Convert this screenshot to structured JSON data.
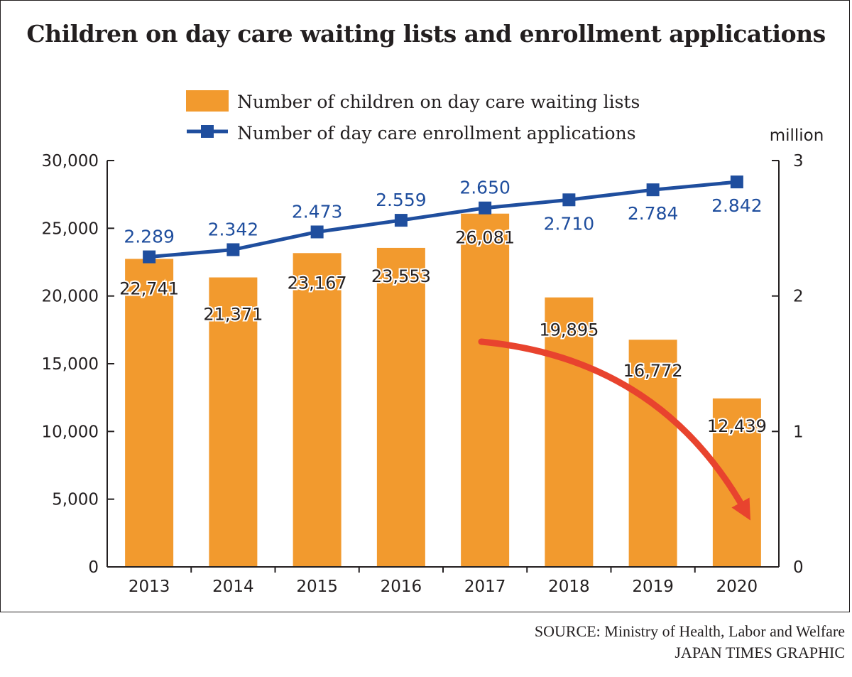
{
  "title": "Children on day care waiting lists and enrollment applications",
  "source": "SOURCE: Ministry of Health, Labor and Welfare",
  "credit": "JAPAN TIMES GRAPHIC",
  "colors": {
    "bar": "#f29a2e",
    "line": "#1f4e9e",
    "arrow": "#e8432e",
    "text": "#231f20"
  },
  "chart_data": {
    "type": "bar",
    "categories": [
      "2013",
      "2014",
      "2015",
      "2016",
      "2017",
      "2018",
      "2019",
      "2020"
    ],
    "series": [
      {
        "name": "Number of children on day care waiting lists",
        "type": "bar",
        "axis": "left",
        "values": [
          22741,
          21371,
          23167,
          23553,
          26081,
          19895,
          16772,
          12439
        ],
        "labels": [
          "22,741",
          "21,371",
          "23,167",
          "23,553",
          "26,081",
          "19,895",
          "16,772",
          "12,439"
        ]
      },
      {
        "name": "Number of day care enrollment applications",
        "type": "line",
        "axis": "right",
        "values": [
          2.289,
          2.342,
          2.473,
          2.559,
          2.65,
          2.71,
          2.784,
          2.842
        ],
        "labels": [
          "2.289",
          "2.342",
          "2.473",
          "2.559",
          "2.650",
          "2.710",
          "2.784",
          "2.842"
        ]
      }
    ],
    "left_axis": {
      "range": [
        0,
        30000
      ],
      "ticks": [
        0,
        5000,
        10000,
        15000,
        20000,
        25000,
        30000
      ],
      "tick_labels": [
        "0",
        "5,000",
        "10,000",
        "15,000",
        "20,000",
        "25,000",
        "30,000"
      ]
    },
    "right_axis": {
      "unit": "million",
      "range": [
        0,
        3
      ],
      "ticks": [
        0,
        1,
        2,
        3
      ],
      "tick_labels": [
        "0",
        "1",
        "2",
        "3"
      ]
    },
    "legend_position": "top-center",
    "grid": false,
    "annotation": "red downward arrow from 2017 to 2020"
  }
}
